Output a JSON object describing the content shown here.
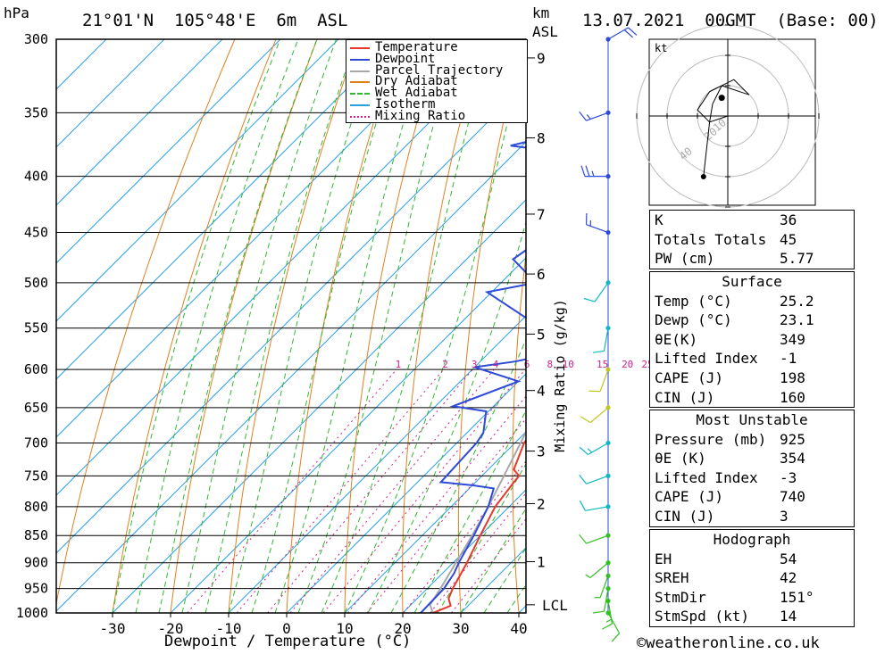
{
  "header": {
    "unit_left": "hPa",
    "location": "21°01'N  105°48'E  6m  ASL",
    "unit_km": "km",
    "unit_asl": "ASL",
    "datetime": "13.07.2021  00GMT  (Base: 00)"
  },
  "colors": {
    "temperature": "#e8382e",
    "dewpoint": "#2e4ad8",
    "parcel": "#a8a8a8",
    "dry_adiabat": "#e08020",
    "wet_adiabat": "#30b830",
    "isotherm": "#2aa0e0",
    "mixing": "#d0208c",
    "wind": "#2e4ad8"
  },
  "legend": [
    {
      "label": "Temperature",
      "color": "#e8382e",
      "style": "solid"
    },
    {
      "label": "Dewpoint",
      "color": "#2e4ad8",
      "style": "solid"
    },
    {
      "label": "Parcel Trajectory",
      "color": "#a8a8a8",
      "style": "solid"
    },
    {
      "label": "Dry Adiabat",
      "color": "#e08020",
      "style": "solid"
    },
    {
      "label": "Wet Adiabat",
      "color": "#30b830",
      "style": "dashed"
    },
    {
      "label": "Isotherm",
      "color": "#2aa0e0",
      "style": "solid"
    },
    {
      "label": "Mixing Ratio",
      "color": "#d0208c",
      "style": "dotted"
    }
  ],
  "chart_data": {
    "type": "line",
    "title": "21°01'N 105°48'E 6m ASL — 13.07.2021 00GMT (Base: 00)",
    "xlabel": "Dewpoint / Temperature (°C)",
    "ylabel": "hPa",
    "right_label": "Mixing Ratio (g/kg)",
    "x_ticks": [
      -30,
      -20,
      -10,
      0,
      10,
      20,
      30,
      40
    ],
    "pressure_levels": [
      300,
      350,
      400,
      450,
      500,
      550,
      600,
      650,
      700,
      750,
      800,
      850,
      900,
      950,
      1000
    ],
    "xlim_at_1000hPa": [
      -38,
      40.5
    ],
    "height_km_ticks": [
      {
        "label": "9",
        "p": 312
      },
      {
        "label": "8",
        "p": 369
      },
      {
        "label": "7",
        "p": 433
      },
      {
        "label": "6",
        "p": 491
      },
      {
        "label": "5",
        "p": 557
      },
      {
        "label": "4",
        "p": 627
      },
      {
        "label": "3",
        "p": 712
      },
      {
        "label": "2",
        "p": 795
      },
      {
        "label": "1",
        "p": 898
      },
      {
        "label": "LCL",
        "p": 983
      }
    ],
    "mixing_ratio_labels": [
      "1",
      "2",
      "3",
      "4",
      "6",
      "8",
      "10",
      "15",
      "20",
      "25"
    ],
    "mixing_ratio_values": [
      1,
      2,
      3,
      4,
      6,
      8,
      10,
      15,
      20,
      25
    ],
    "series": [
      {
        "name": "Temperature",
        "points": [
          [
            1000,
            25.2
          ],
          [
            985,
            27.0
          ],
          [
            970,
            25.4
          ],
          [
            950,
            24.4
          ],
          [
            900,
            22.4
          ],
          [
            850,
            20.0
          ],
          [
            800,
            17.6
          ],
          [
            760,
            16.6
          ],
          [
            750,
            16.4
          ],
          [
            740,
            14.4
          ],
          [
            700,
            11.6
          ],
          [
            670,
            10.6
          ],
          [
            650,
            9.6
          ],
          [
            630,
            7.6
          ],
          [
            600,
            4.6
          ],
          [
            575,
            3.0
          ],
          [
            550,
            1.0
          ],
          [
            520,
            -1.4
          ],
          [
            500,
            -4.2
          ],
          [
            475,
            -5.2
          ],
          [
            450,
            -9.4
          ],
          [
            425,
            -12.2
          ],
          [
            400,
            -18.0
          ],
          [
            385,
            -19.6
          ],
          [
            375,
            -23.0
          ],
          [
            360,
            -25.6
          ]
        ]
      },
      {
        "name": "Dewpoint",
        "points": [
          [
            1000,
            23.1
          ],
          [
            950,
            22.9
          ],
          [
            920,
            22.0
          ],
          [
            900,
            21.0
          ],
          [
            850,
            18.9
          ],
          [
            800,
            16.4
          ],
          [
            770,
            14.2
          ],
          [
            765,
            10.0
          ],
          [
            760,
            4.0
          ],
          [
            700,
            3.4
          ],
          [
            685,
            2.8
          ],
          [
            655,
            -0.4
          ],
          [
            648,
            -7.0
          ],
          [
            615,
            0.0
          ],
          [
            597,
            -10.0
          ],
          [
            590,
            -4.0
          ],
          [
            575,
            4.0
          ],
          [
            510,
            -20.8
          ],
          [
            500,
            -14.0
          ],
          [
            476,
            -22.0
          ],
          [
            450,
            -20.0
          ],
          [
            425,
            -23.5
          ],
          [
            400,
            -28.0
          ],
          [
            380,
            -33.0
          ],
          [
            375,
            -42.0
          ],
          [
            360,
            -31.0
          ],
          [
            345,
            -48.0
          ],
          [
            332,
            -38.0
          ],
          [
            322,
            -58.0
          ],
          [
            314,
            -44.0
          ],
          [
            313,
            -61.0
          ],
          [
            309,
            -60.0
          ],
          [
            300,
            -87.0
          ]
        ]
      },
      {
        "name": "Parcel Trajectory",
        "points": [
          [
            1000,
            25.2
          ],
          [
            983,
            23.3
          ],
          [
            950,
            22.3
          ],
          [
            900,
            20.5
          ],
          [
            850,
            18.6
          ],
          [
            800,
            16.4
          ],
          [
            750,
            13.8
          ],
          [
            700,
            11.0
          ],
          [
            650,
            7.8
          ],
          [
            600,
            4.2
          ],
          [
            550,
            0.1
          ],
          [
            500,
            -4.8
          ],
          [
            450,
            -10.3
          ],
          [
            400,
            -16.9
          ],
          [
            360,
            -23.0
          ]
        ]
      }
    ],
    "wind_profile": [
      {
        "p": 1000,
        "dir": 151,
        "kt": 14
      },
      {
        "p": 975,
        "dir": 170,
        "kt": 15
      },
      {
        "p": 950,
        "dir": 190,
        "kt": 10
      },
      {
        "p": 925,
        "dir": 200,
        "kt": 6
      },
      {
        "p": 900,
        "dir": 230,
        "kt": 8
      },
      {
        "p": 850,
        "dir": 250,
        "kt": 10
      },
      {
        "p": 800,
        "dir": 260,
        "kt": 10
      },
      {
        "p": 750,
        "dir": 250,
        "kt": 12
      },
      {
        "p": 700,
        "dir": 240,
        "kt": 15
      },
      {
        "p": 650,
        "dir": 230,
        "kt": 14
      },
      {
        "p": 600,
        "dir": 200,
        "kt": 12
      },
      {
        "p": 550,
        "dir": 190,
        "kt": 14
      },
      {
        "p": 500,
        "dir": 215,
        "kt": 10
      },
      {
        "p": 450,
        "dir": 290,
        "kt": 15
      },
      {
        "p": 400,
        "dir": 270,
        "kt": 25
      },
      {
        "p": 350,
        "dir": 250,
        "kt": 15
      },
      {
        "p": 300,
        "dir": 60,
        "kt": 20
      }
    ],
    "hodograph": {
      "unit": "kt",
      "ring_labels": [
        "10",
        "20",
        "40"
      ],
      "points": [
        [
          -8,
          -20
        ],
        [
          -6,
          -2
        ],
        [
          -5,
          4
        ],
        [
          -2,
          10
        ],
        [
          4,
          8
        ],
        [
          7,
          7
        ],
        [
          2,
          12
        ],
        [
          -6,
          8
        ],
        [
          -10,
          2
        ],
        [
          -6,
          -2
        ],
        [
          0,
          0
        ]
      ]
    }
  },
  "indices": {
    "general": [
      {
        "label": "K",
        "value": "36"
      },
      {
        "label": "Totals Totals",
        "value": "45"
      },
      {
        "label": "PW (cm)",
        "value": "5.77"
      }
    ],
    "surface": {
      "title": "Surface",
      "rows": [
        {
          "label": "Temp (°C)",
          "value": "25.2"
        },
        {
          "label": "Dewp (°C)",
          "value": "23.1"
        },
        {
          "label": "θE(K)",
          "value": "349"
        },
        {
          "label": "Lifted Index",
          "value": "-1"
        },
        {
          "label": "CAPE (J)",
          "value": "198"
        },
        {
          "label": "CIN (J)",
          "value": "160"
        }
      ]
    },
    "most_unstable": {
      "title": "Most Unstable",
      "rows": [
        {
          "label": "Pressure (mb)",
          "value": "925"
        },
        {
          "label": "θE (K)",
          "value": "354"
        },
        {
          "label": "Lifted Index",
          "value": "-3"
        },
        {
          "label": "CAPE (J)",
          "value": "740"
        },
        {
          "label": "CIN (J)",
          "value": "3"
        }
      ]
    },
    "hodograph": {
      "title": "Hodograph",
      "rows": [
        {
          "label": "EH",
          "value": "54"
        },
        {
          "label": "SREH",
          "value": "42"
        },
        {
          "label": "StmDir",
          "value": "151°"
        },
        {
          "label": "StmSpd (kt)",
          "value": "14"
        }
      ]
    }
  },
  "footer": {
    "copyright": "©weatheronline.co.uk"
  }
}
